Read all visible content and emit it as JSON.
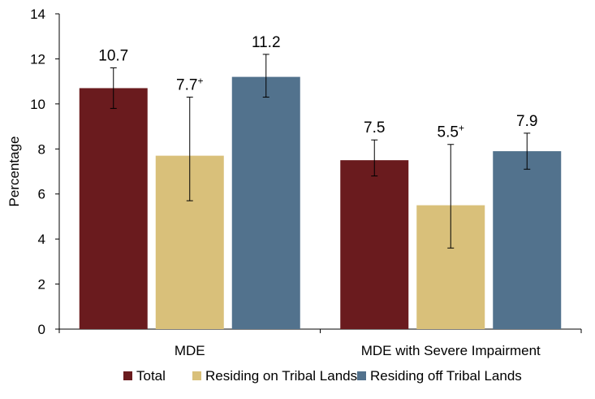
{
  "chart_data": {
    "type": "bar",
    "title": "",
    "xlabel": "",
    "ylabel": "Percentage",
    "ylim": [
      0,
      14
    ],
    "yticks": [
      0,
      2,
      4,
      6,
      8,
      10,
      12,
      14
    ],
    "categories": [
      "MDE",
      "MDE with Severe Impairment"
    ],
    "series": [
      {
        "name": "Total",
        "color": "#6a1b1e",
        "values": [
          10.7,
          7.5
        ],
        "labels": [
          "10.7",
          "7.5"
        ],
        "superscripts": [
          "",
          ""
        ],
        "error_low": [
          9.8,
          6.8
        ],
        "error_high": [
          11.6,
          8.4
        ]
      },
      {
        "name": "Residing on Tribal Lands",
        "color": "#d9c07a",
        "values": [
          7.7,
          5.5
        ],
        "labels": [
          "7.7",
          "5.5"
        ],
        "superscripts": [
          "+",
          "+"
        ],
        "error_low": [
          5.7,
          3.6
        ],
        "error_high": [
          10.3,
          8.2
        ]
      },
      {
        "name": "Residing off Tribal Lands",
        "color": "#52728d",
        "values": [
          11.2,
          7.9
        ],
        "labels": [
          "11.2",
          "7.9"
        ],
        "superscripts": [
          "",
          ""
        ],
        "error_low": [
          10.3,
          7.1
        ],
        "error_high": [
          12.2,
          8.7
        ]
      }
    ],
    "legend": "bottom"
  }
}
